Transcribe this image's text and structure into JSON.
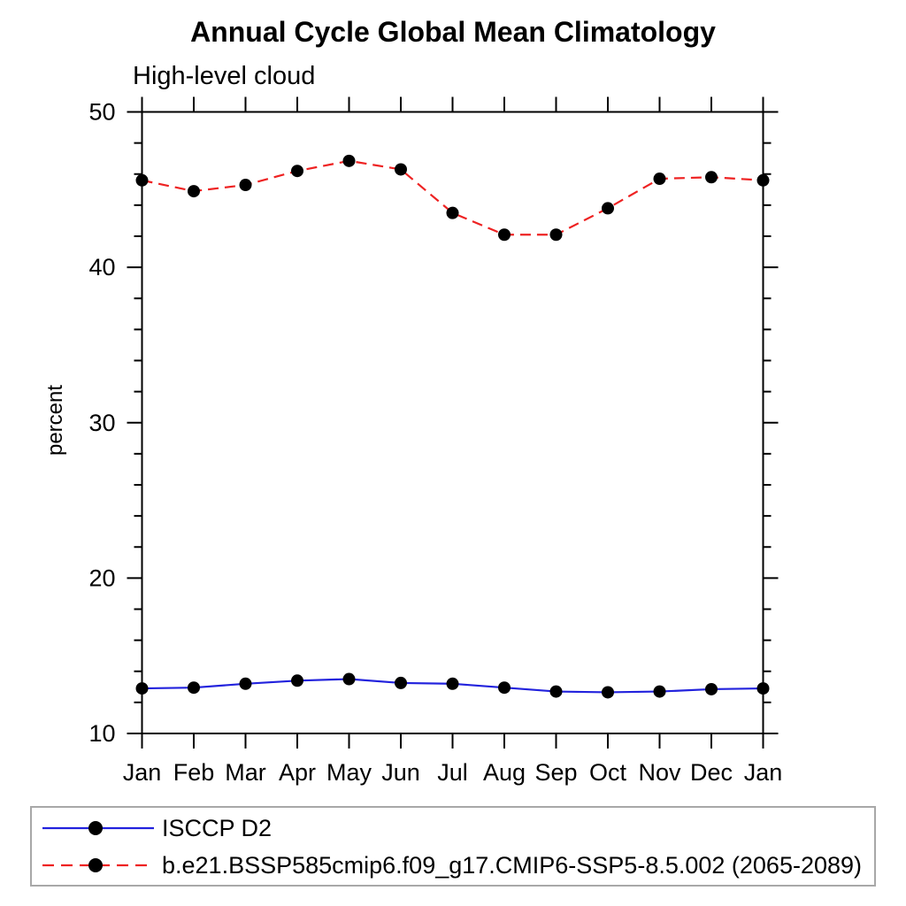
{
  "title": "Annual Cycle Global Mean Climatology",
  "subtitle": "High-level cloud",
  "ylabel": "percent",
  "colors": {
    "axis": "#000000",
    "marker": "#000000",
    "legend_border": "#a8a8a8",
    "series_blue": "#2222dd",
    "series_red": "#ee2222"
  },
  "legend": {
    "items": [
      {
        "label": "ISCCP D2",
        "color": "#2222dd",
        "style": "solid"
      },
      {
        "label": "b.e21.BSSP585cmip6.f09_g17.CMIP6-SSP5-8.5.002 (2065-2089)",
        "color": "#ee2222",
        "style": "dashed"
      }
    ]
  },
  "chart_data": {
    "type": "line",
    "title": "Annual Cycle Global Mean Climatology",
    "subtitle": "High-level cloud",
    "xlabel": "",
    "ylabel": "percent",
    "categories": [
      "Jan",
      "Feb",
      "Mar",
      "Apr",
      "May",
      "Jun",
      "Jul",
      "Aug",
      "Sep",
      "Oct",
      "Nov",
      "Dec",
      "Jan"
    ],
    "ylim": [
      10,
      50
    ],
    "yticks_major": [
      10,
      20,
      30,
      40,
      50
    ],
    "ytick_minor_step": 2,
    "grid": false,
    "legend_position": "bottom",
    "marker": "filled-circle",
    "marker_color": "#000000",
    "series": [
      {
        "name": "ISCCP D2",
        "color": "#2222dd",
        "style": "solid",
        "values": [
          12.9,
          12.95,
          13.2,
          13.4,
          13.5,
          13.25,
          13.2,
          12.95,
          12.7,
          12.65,
          12.7,
          12.85,
          12.9
        ]
      },
      {
        "name": "b.e21.BSSP585cmip6.f09_g17.CMIP6-SSP5-8.5.002 (2065-2089)",
        "color": "#ee2222",
        "style": "dashed",
        "values": [
          45.6,
          44.9,
          45.3,
          46.2,
          46.85,
          46.3,
          43.5,
          42.1,
          42.1,
          43.8,
          45.7,
          45.8,
          45.6
        ]
      }
    ]
  }
}
